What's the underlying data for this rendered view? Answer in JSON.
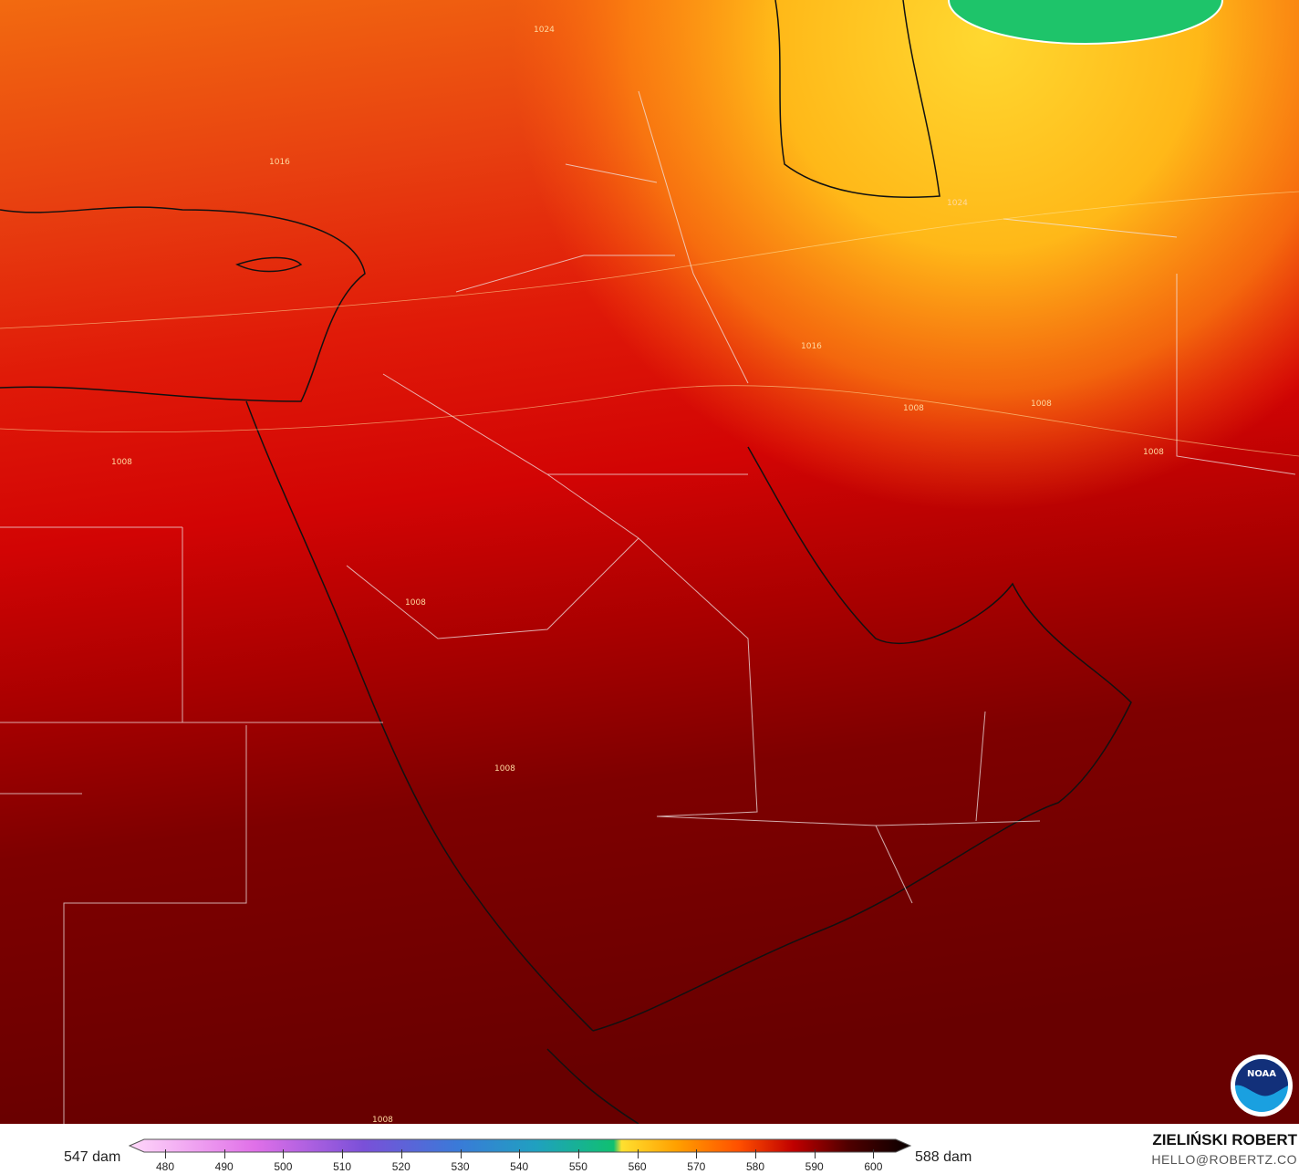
{
  "map": {
    "isobar_labels": [
      "1024",
      "1024",
      "1016",
      "1016",
      "1008",
      "1008",
      "1008",
      "1008",
      "1008",
      "1008",
      "1008"
    ],
    "colors": {
      "north": "#f26a10",
      "northeast": "#ffc419",
      "green_low": "#1ec46a",
      "central": "#d80404",
      "south": "#6c0000"
    },
    "logo": "NOAA"
  },
  "legend": {
    "min_label": "547 dam",
    "max_label": "588 dam",
    "ticks": [
      "480",
      "490",
      "500",
      "510",
      "520",
      "530",
      "540",
      "550",
      "560",
      "570",
      "580",
      "590",
      "600"
    ],
    "colorbar": [
      "#ffd0f8",
      "#e070e8",
      "#8a50d8",
      "#3a7ad8",
      "#20a0c0",
      "#10c070",
      "#ffe030",
      "#ffa000",
      "#ff6000",
      "#e82000",
      "#b00000",
      "#500000",
      "#100000"
    ]
  },
  "brand": {
    "name": "ZIELIŃSKI ROBERT",
    "email": "HELLO@ROBERTZ.CO"
  }
}
